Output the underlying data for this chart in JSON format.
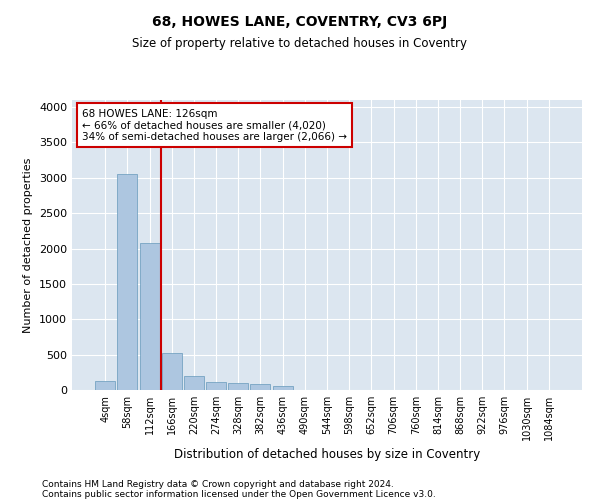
{
  "title": "68, HOWES LANE, COVENTRY, CV3 6PJ",
  "subtitle": "Size of property relative to detached houses in Coventry",
  "xlabel": "Distribution of detached houses by size in Coventry",
  "ylabel": "Number of detached properties",
  "footnote1": "Contains HM Land Registry data © Crown copyright and database right 2024.",
  "footnote2": "Contains public sector information licensed under the Open Government Licence v3.0.",
  "annotation_title": "68 HOWES LANE: 126sqm",
  "annotation_line1": "← 66% of detached houses are smaller (4,020)",
  "annotation_line2": "34% of semi-detached houses are larger (2,066) →",
  "bar_color": "#adc6e0",
  "bar_edge_color": "#6699bb",
  "vline_color": "#cc0000",
  "annotation_box_edge": "#cc0000",
  "background_color": "#dce6f0",
  "categories": [
    "4sqm",
    "58sqm",
    "112sqm",
    "166sqm",
    "220sqm",
    "274sqm",
    "328sqm",
    "382sqm",
    "436sqm",
    "490sqm",
    "544sqm",
    "598sqm",
    "652sqm",
    "706sqm",
    "760sqm",
    "814sqm",
    "868sqm",
    "922sqm",
    "976sqm",
    "1030sqm",
    "1084sqm"
  ],
  "values": [
    130,
    3050,
    2080,
    530,
    200,
    120,
    100,
    80,
    60,
    0,
    0,
    0,
    0,
    0,
    0,
    0,
    0,
    0,
    0,
    0,
    0
  ],
  "ylim": [
    0,
    4100
  ],
  "yticks": [
    0,
    500,
    1000,
    1500,
    2000,
    2500,
    3000,
    3500,
    4000
  ],
  "vline_x_index": 2.5,
  "figsize": [
    6.0,
    5.0
  ],
  "dpi": 100
}
